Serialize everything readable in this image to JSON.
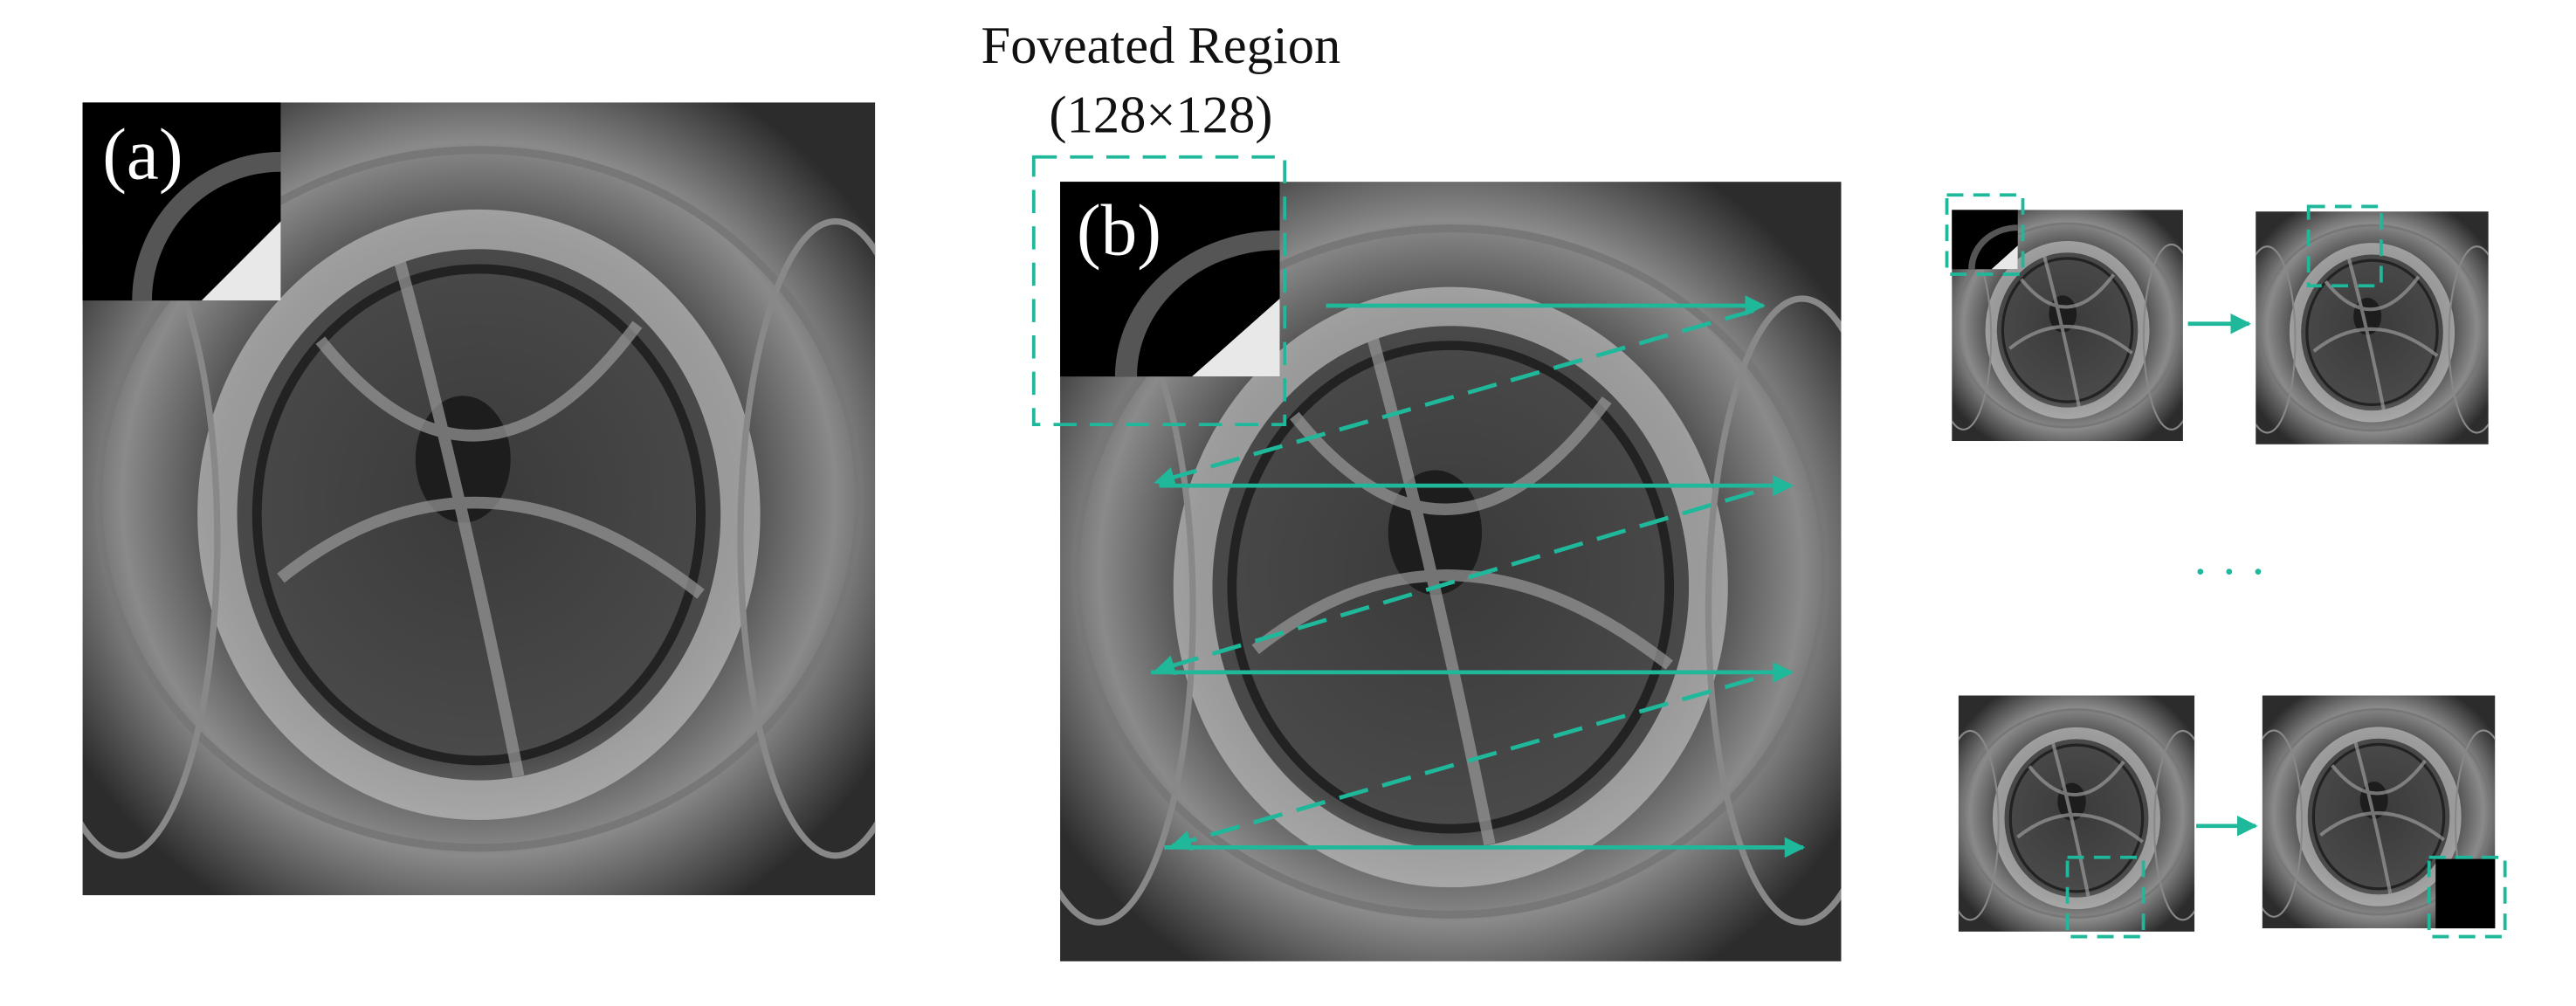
{
  "figure": {
    "caption_title": "Foveated Region",
    "caption_size": "(128×128)",
    "panel_a_label": "(a)",
    "panel_b_label": "(b)",
    "ellipsis": "· · ·"
  }
}
